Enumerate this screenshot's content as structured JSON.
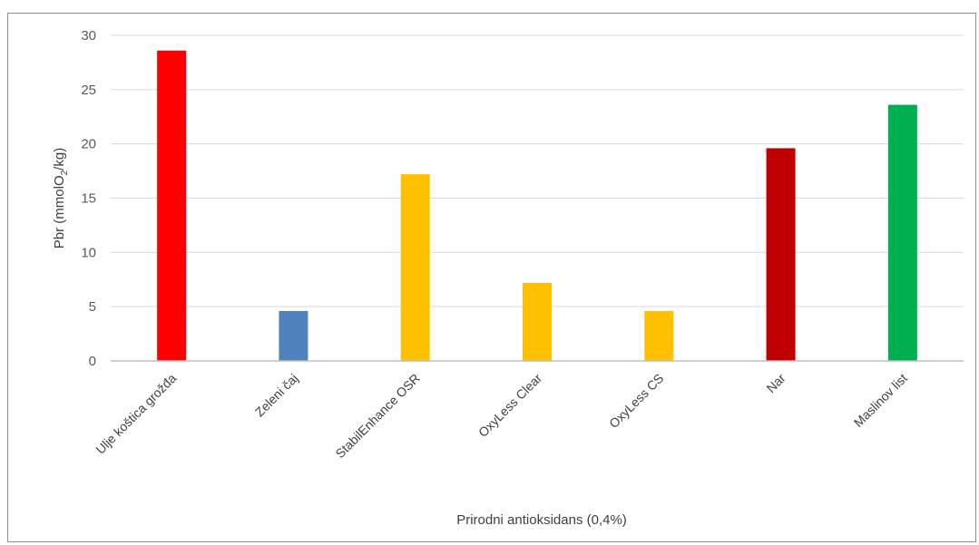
{
  "chart_data": {
    "type": "bar",
    "categories": [
      "Ulje koštica grožđa",
      "Zeleni čaj",
      "StabilEnhance OSR",
      "OxyLess Clear",
      "OxyLess CS",
      "Nar",
      "Maslinov list"
    ],
    "values": [
      28.6,
      4.6,
      17.2,
      7.2,
      4.6,
      19.6,
      23.6
    ],
    "colors": [
      "#ff0000",
      "#4f81bd",
      "#ffc000",
      "#ffc000",
      "#ffc000",
      "#c00000",
      "#00b050"
    ],
    "ylabel_prefix": "Pbr (mmolO",
    "ylabel_sub": "2",
    "ylabel_suffix": "/kg)",
    "xlabel": "Prirodni antioksidans (0,4%)",
    "ylim": [
      0,
      30
    ],
    "yticks": [
      0,
      5,
      10,
      15,
      20,
      25,
      30
    ],
    "grid": true,
    "gridcolor": "#d9d9d9"
  }
}
